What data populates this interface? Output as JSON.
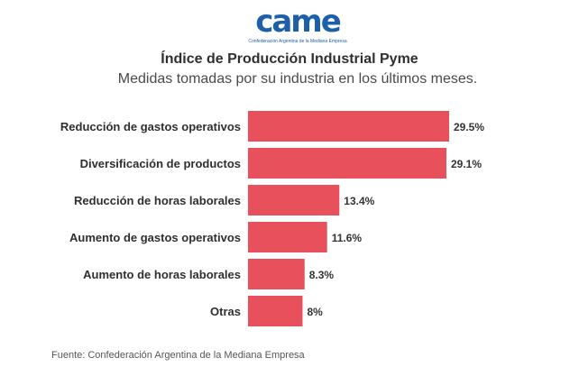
{
  "logo": {
    "mark": "came",
    "subtitle": "Confederación Argentina de la Mediana Empresa"
  },
  "chart_data": {
    "type": "bar",
    "orientation": "horizontal",
    "title": "Índice de Producción Industrial Pyme",
    "subtitle": "Medidas tomadas por su industria en los últimos meses.",
    "categories": [
      "Reducción de gastos operativos",
      "Diversificación de productos",
      "Reducción de horas laborales",
      "Aumento de gastos operativos",
      "Aumento de horas laborales",
      "Otras"
    ],
    "values": [
      29.5,
      29.1,
      13.4,
      11.6,
      8.3,
      8
    ],
    "labels": [
      "29.5%",
      "29.1%",
      "13.4%",
      "11.6%",
      "8.3%",
      "8%"
    ],
    "xlim": [
      0,
      29.5
    ],
    "grid": false,
    "bar_color": "#e8505b"
  },
  "source": "Fuente: Confederación Argentina de la Mediana Empresa"
}
